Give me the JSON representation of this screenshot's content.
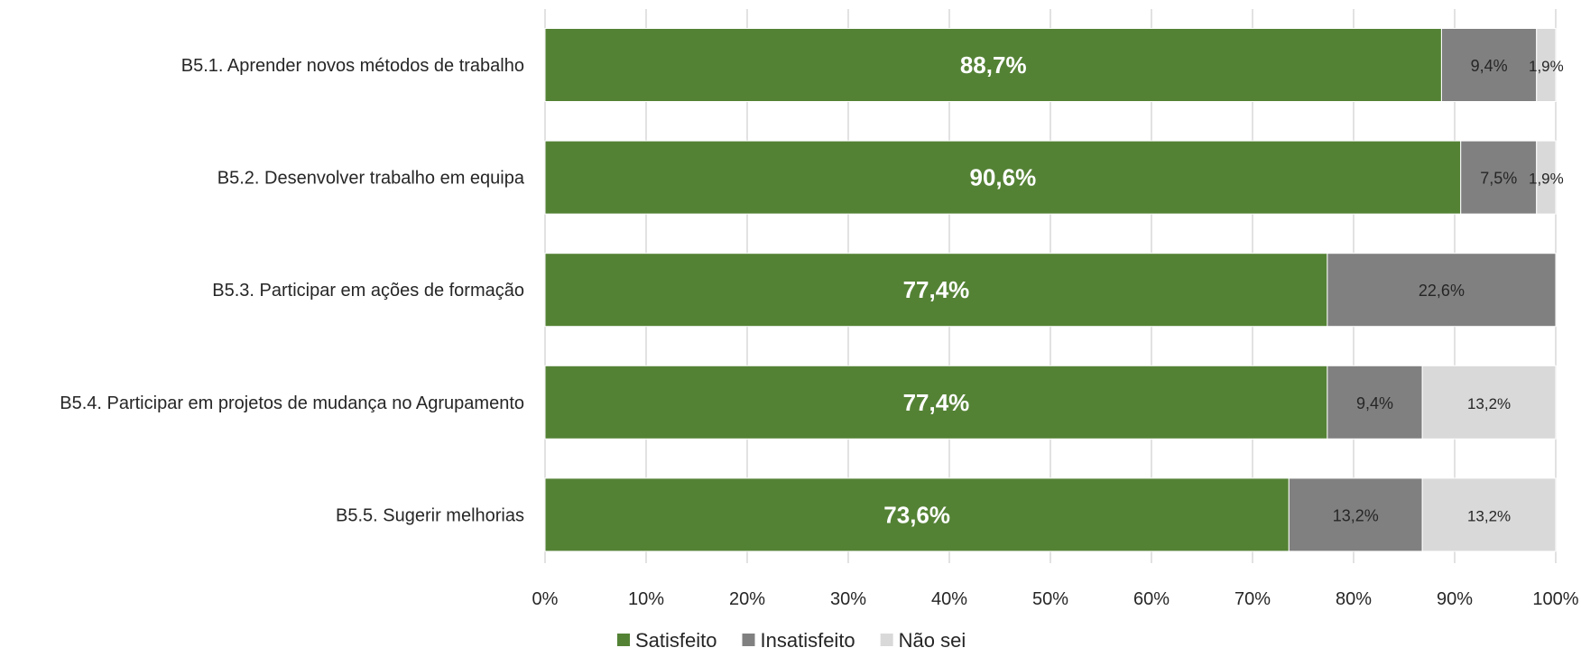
{
  "chart_data": {
    "type": "bar",
    "orientation": "horizontal",
    "stacked": true,
    "percent_scale": true,
    "categories": [
      "B5.1. Aprender novos métodos de trabalho",
      "B5.2. Desenvolver trabalho em equipa",
      "B5.3. Participar em ações de formação",
      "B5.4. Participar em projetos de mudança no Agrupamento",
      "B5.5. Sugerir melhorias"
    ],
    "series": [
      {
        "name": "Satisfeito",
        "color": "#548235",
        "values": [
          88.7,
          90.6,
          77.4,
          77.4,
          73.6
        ],
        "labels": [
          "88,7%",
          "90,6%",
          "77,4%",
          "77,4%",
          "73,6%"
        ]
      },
      {
        "name": "Insatisfeito",
        "color": "#808080",
        "values": [
          9.4,
          7.5,
          22.6,
          9.4,
          13.2
        ],
        "labels": [
          "9,4%",
          "7,5%",
          "22,6%",
          "9,4%",
          "13,2%"
        ]
      },
      {
        "name": "Não sei",
        "color": "#d9d9d9",
        "values": [
          1.9,
          1.9,
          0,
          13.2,
          13.2
        ],
        "labels": [
          "1,9%",
          "1,9%",
          "",
          "13,2%",
          "13,2%"
        ]
      }
    ],
    "xlim": [
      0,
      100
    ],
    "xticks": [
      "0%",
      "10%",
      "20%",
      "30%",
      "40%",
      "50%",
      "60%",
      "70%",
      "80%",
      "90%",
      "100%"
    ],
    "grid": "vertical",
    "legend": "bottom",
    "title": "",
    "xlabel": "",
    "ylabel": ""
  }
}
